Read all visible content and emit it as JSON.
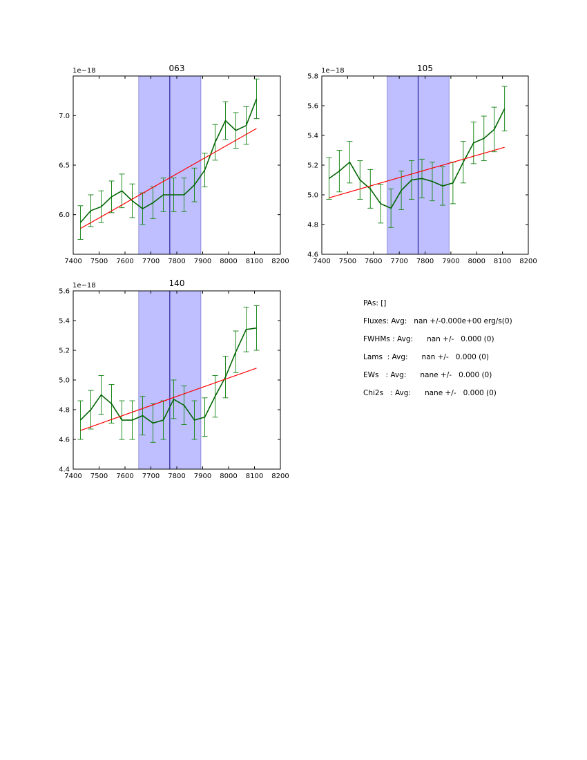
{
  "colors": {
    "data_line": "#006400",
    "error_bar": "#228b22",
    "fit_line": "#ff0000",
    "band_fill": "#bfbfff",
    "band_edge": "#7a7ad0",
    "center_line": "#000080"
  },
  "chart_data": [
    {
      "type": "line",
      "title": "063",
      "offset_label": "1e−18",
      "xlim": [
        7400,
        8200
      ],
      "ylim": [
        5.6,
        7.4
      ],
      "xticks": [
        7400,
        7500,
        7600,
        7700,
        7800,
        7900,
        8000,
        8100,
        8200
      ],
      "xtick_labels": [
        "7400",
        "7500",
        "7600",
        "7700",
        "7800",
        "7900",
        "8000",
        "8100",
        "8200"
      ],
      "yticks": [
        6.0,
        6.5,
        7.0
      ],
      "ytick_labels": [
        "6.0",
        "6.5",
        "7.0"
      ],
      "band": [
        7653,
        7893
      ],
      "vline": 7773,
      "series": [
        {
          "x": [
            7428,
            7468,
            7508,
            7548,
            7588,
            7628,
            7668,
            7708,
            7748,
            7788,
            7828,
            7868,
            7908,
            7948,
            7988,
            8028,
            8068,
            8108
          ],
          "y": [
            5.92,
            6.04,
            6.08,
            6.18,
            6.24,
            6.14,
            6.06,
            6.12,
            6.2,
            6.2,
            6.2,
            6.3,
            6.45,
            6.73,
            6.95,
            6.85,
            6.9,
            7.17
          ],
          "yerr": [
            0.17,
            0.16,
            0.16,
            0.16,
            0.17,
            0.17,
            0.16,
            0.16,
            0.17,
            0.17,
            0.17,
            0.17,
            0.17,
            0.18,
            0.19,
            0.18,
            0.19,
            0.2
          ]
        }
      ],
      "fit": {
        "x": [
          7428,
          8108
        ],
        "y": [
          5.86,
          6.87
        ]
      }
    },
    {
      "type": "line",
      "title": "105",
      "offset_label": "1e−18",
      "xlim": [
        7400,
        8200
      ],
      "ylim": [
        4.6,
        5.8
      ],
      "xticks": [
        7400,
        7500,
        7600,
        7700,
        7800,
        7900,
        8000,
        8100,
        8200
      ],
      "xtick_labels": [
        "7400",
        "7500",
        "7600",
        "7700",
        "7800",
        "7900",
        "8000",
        "8100",
        "8200"
      ],
      "yticks": [
        4.6,
        4.8,
        5.0,
        5.2,
        5.4,
        5.6,
        5.8
      ],
      "ytick_labels": [
        "4.6",
        "4.8",
        "5.0",
        "5.2",
        "5.4",
        "5.6",
        "5.8"
      ],
      "band": [
        7653,
        7893
      ],
      "vline": 7773,
      "series": [
        {
          "x": [
            7428,
            7468,
            7508,
            7548,
            7588,
            7628,
            7668,
            7708,
            7748,
            7788,
            7828,
            7868,
            7908,
            7948,
            7988,
            8028,
            8068,
            8108
          ],
          "y": [
            5.11,
            5.16,
            5.22,
            5.1,
            5.04,
            4.94,
            4.91,
            5.03,
            5.1,
            5.11,
            5.09,
            5.06,
            5.08,
            5.22,
            5.35,
            5.38,
            5.44,
            5.58
          ],
          "yerr": [
            0.14,
            0.14,
            0.14,
            0.13,
            0.13,
            0.13,
            0.13,
            0.13,
            0.13,
            0.13,
            0.13,
            0.13,
            0.14,
            0.14,
            0.14,
            0.15,
            0.15,
            0.15
          ]
        }
      ],
      "fit": {
        "x": [
          7428,
          8108
        ],
        "y": [
          4.98,
          5.32
        ]
      }
    },
    {
      "type": "line",
      "title": "140",
      "offset_label": "1e−18",
      "xlim": [
        7400,
        8200
      ],
      "ylim": [
        4.4,
        5.6
      ],
      "xticks": [
        7400,
        7500,
        7600,
        7700,
        7800,
        7900,
        8000,
        8100,
        8200
      ],
      "xtick_labels": [
        "7400",
        "7500",
        "7600",
        "7700",
        "7800",
        "7900",
        "8000",
        "8100",
        "8200"
      ],
      "yticks": [
        4.4,
        4.6,
        4.8,
        5.0,
        5.2,
        5.4,
        5.6
      ],
      "ytick_labels": [
        "4.4",
        "4.6",
        "4.8",
        "5.0",
        "5.2",
        "5.4",
        "5.6"
      ],
      "band": [
        7653,
        7893
      ],
      "vline": 7773,
      "series": [
        {
          "x": [
            7428,
            7468,
            7508,
            7548,
            7588,
            7628,
            7668,
            7708,
            7748,
            7788,
            7828,
            7868,
            7908,
            7948,
            7988,
            8028,
            8068,
            8108
          ],
          "y": [
            4.73,
            4.8,
            4.9,
            4.84,
            4.73,
            4.73,
            4.76,
            4.71,
            4.73,
            4.87,
            4.83,
            4.73,
            4.75,
            4.89,
            5.02,
            5.19,
            5.34,
            5.35
          ],
          "yerr": [
            0.13,
            0.13,
            0.13,
            0.13,
            0.13,
            0.13,
            0.13,
            0.13,
            0.13,
            0.13,
            0.13,
            0.13,
            0.13,
            0.14,
            0.14,
            0.14,
            0.15,
            0.15
          ]
        }
      ],
      "fit": {
        "x": [
          7428,
          8108
        ],
        "y": [
          4.66,
          5.08
        ]
      }
    }
  ],
  "stats": [
    "PAs: []",
    "Fluxes: Avg:   nan +/-0.000e+00 erg/s(0)",
    "FWHMs : Avg:      nan +/-   0.000 (0)",
    "Lams  : Avg:      nan +/-   0.000 (0)",
    "EWs   : Avg:      nane +/-   0.000 (0)",
    "Chi2s   : Avg:      nane +/-   0.000 (0)"
  ]
}
